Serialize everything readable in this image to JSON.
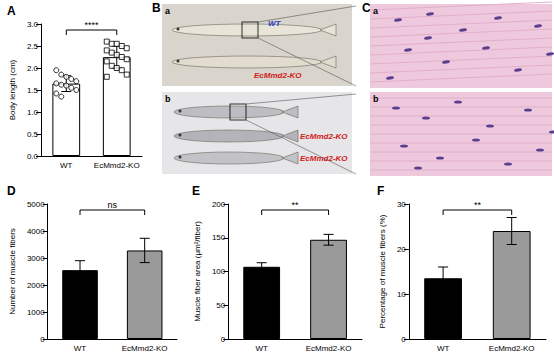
{
  "chart_data": [
    {
      "type": "bar",
      "title": "A",
      "categories": [
        "WT",
        "EcMmd2-KO"
      ],
      "values": [
        1.645,
        2.247
      ],
      "error": [
        0.18,
        0.25
      ],
      "points": [
        {
          "marker": "circle",
          "values": [
            1.95,
            1.85,
            1.8,
            1.75,
            1.7,
            1.65,
            1.62,
            1.6,
            1.55,
            1.5,
            1.42,
            1.35
          ]
        },
        {
          "marker": "square",
          "values": [
            2.6,
            2.55,
            2.55,
            2.5,
            2.45,
            2.4,
            2.35,
            2.3,
            2.25,
            2.2,
            2.15,
            2.05,
            2.0,
            1.95,
            1.85,
            1.8
          ]
        }
      ],
      "colors": [
        "#ffffff",
        "#ffffff"
      ],
      "y_label": "Body length (cm)",
      "ylim": [
        0,
        3
      ],
      "yticks": [
        {
          "value": 0,
          "label": "0.0"
        },
        {
          "value": 0.5,
          "label": "0.5"
        },
        {
          "value": 1,
          "label": "1.0"
        },
        {
          "value": 1.5,
          "label": "1.5"
        },
        {
          "value": 2,
          "label": "2.0"
        },
        {
          "value": 2.5,
          "label": "2.5"
        },
        {
          "value": 3,
          "label": "3.0"
        }
      ],
      "significance": "****",
      "grid": false
    },
    {
      "type": "bar",
      "title": "D",
      "categories": [
        "WT",
        "EcMmd2-KO"
      ],
      "values": [
        2550,
        3280
      ],
      "error": [
        350,
        450
      ],
      "colors": [
        "#000000",
        "#9a9a9a"
      ],
      "y_label": "Number of muscle fibers",
      "ylim": [
        0,
        5000
      ],
      "yticks": [
        0,
        1000,
        2000,
        3000,
        4000,
        5000
      ],
      "significance": "ns",
      "grid": false
    },
    {
      "type": "bar",
      "title": "E",
      "categories": [
        "WT",
        "EcMmd2-KO"
      ],
      "values": [
        107,
        147
      ],
      "error": [
        6,
        8
      ],
      "colors": [
        "#000000",
        "#9a9a9a"
      ],
      "y_label": "Muscle fiber area (μm²/fiber)",
      "ylim": [
        0,
        200
      ],
      "yticks": [
        0,
        50,
        100,
        150,
        200
      ],
      "significance": "**",
      "grid": false
    },
    {
      "type": "bar",
      "title": "F",
      "categories": [
        "WT",
        "EcMmd2-KO"
      ],
      "values": [
        13.5,
        24
      ],
      "error": [
        2.5,
        3
      ],
      "colors": [
        "#000000",
        "#9a9a9a"
      ],
      "y_label": "Percentage of muscle fibers (%)",
      "ylim": [
        0,
        30
      ],
      "yticks": [
        0,
        10,
        20,
        30
      ],
      "significance": "**",
      "grid": false
    }
  ],
  "images": [
    {
      "title": "B",
      "panels": [
        {
          "title": "a",
          "labels": [
            "WT",
            "EcMmd2-KO"
          ]
        },
        {
          "title": "b",
          "labels": [
            "EcMmd2-KO",
            "EcMmd2-KO"
          ]
        }
      ]
    },
    {
      "title": "C",
      "panels": [
        {
          "title": "a",
          "labels": []
        },
        {
          "title": "b",
          "labels": []
        }
      ]
    }
  ]
}
